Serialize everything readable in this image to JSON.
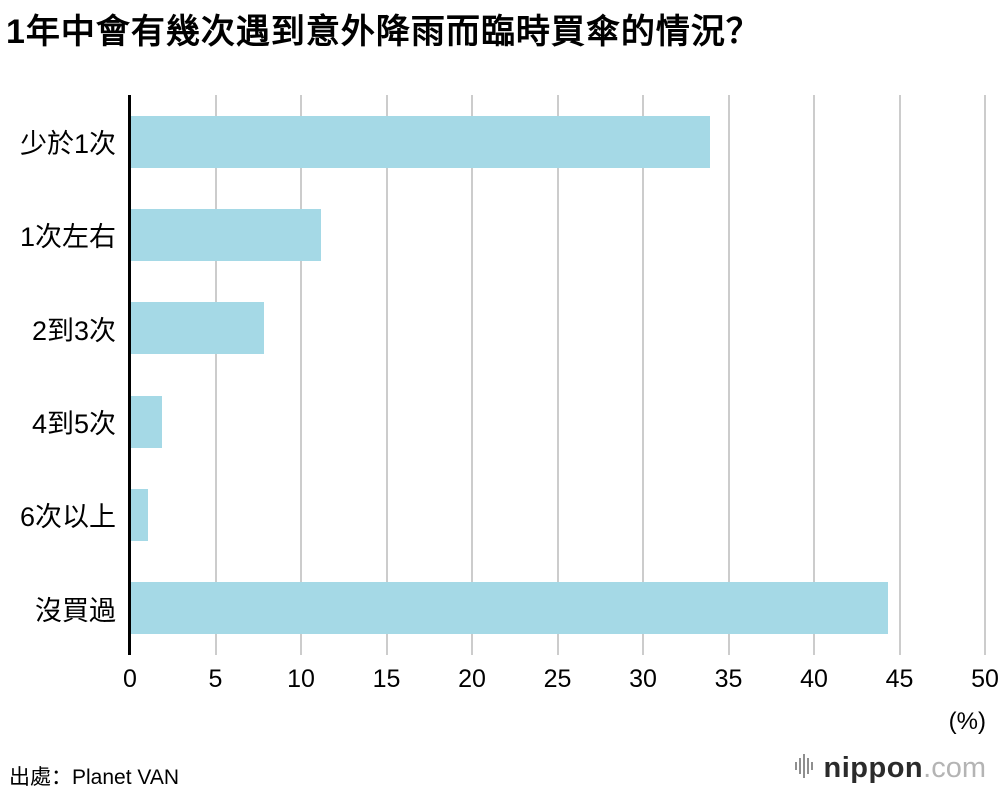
{
  "chart_data": {
    "type": "bar",
    "orientation": "horizontal",
    "title": "1年中會有幾次遇到意外降雨而臨時買傘的情況？",
    "categories": [
      "少於1次",
      "1次左右",
      "2到3次",
      "4到5次",
      "6次以上",
      "沒買過"
    ],
    "values": [
      33.9,
      11.1,
      7.8,
      1.8,
      1.0,
      44.3
    ],
    "xlim": [
      0,
      50
    ],
    "x_ticks": [
      0,
      5,
      10,
      15,
      20,
      25,
      30,
      35,
      40,
      45,
      50
    ],
    "x_unit_label": "(%)",
    "bar_color": "#a5d9e6",
    "gridline_color": "#cccccc",
    "axis_color": "#000000",
    "grid": true,
    "legend": false
  },
  "footer": {
    "source": "出處：Planet VAN",
    "logo": {
      "brand": "nippon",
      "suffix": ".com",
      "icon": "waveform-icon"
    }
  }
}
